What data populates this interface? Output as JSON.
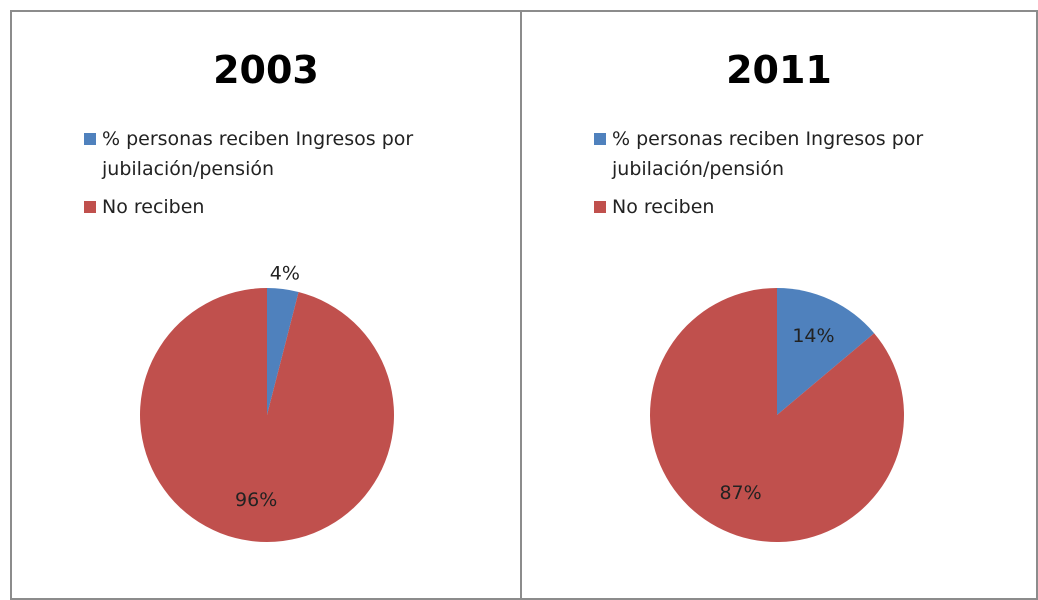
{
  "chart_data": [
    {
      "type": "pie",
      "title": "2003",
      "categories": [
        "% personas reciben Ingresos por jubilación/pensión",
        "No reciben"
      ],
      "values": [
        4,
        96
      ],
      "value_labels": [
        "4%",
        "96%"
      ],
      "colors": [
        "#4f81bd",
        "#c0504d"
      ]
    },
    {
      "type": "pie",
      "title": "2011",
      "categories": [
        "% personas reciben Ingresos por jubilación/pensión",
        "No reciben"
      ],
      "values": [
        14,
        87
      ],
      "value_labels": [
        "14%",
        "87%"
      ],
      "colors": [
        "#4f81bd",
        "#c0504d"
      ]
    }
  ]
}
